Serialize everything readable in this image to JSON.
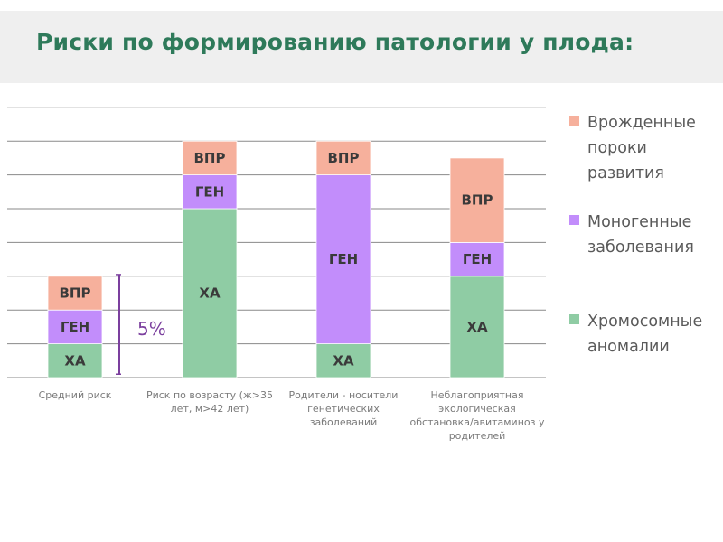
{
  "title": "Риски по формированию патологии у плода:",
  "annotation": "5%",
  "colors": {
    "vpr": "#f6b09c",
    "gen": "#c28dfb",
    "ha": "#8fcca4",
    "title": "#2e7a5a",
    "bracket": "#7b3f9e"
  },
  "chart_data": {
    "type": "bar",
    "stacked": true,
    "grid": true,
    "ylim": [
      0,
      8
    ],
    "categories": [
      "Средний риск",
      "Риск по возрасту (ж>35 лет, м>42 лет)",
      "Родители - носители генетических заболеваний",
      "Неблагоприятная экологическая обстановка/авитаминоз у родителей"
    ],
    "category_lines": [
      [
        "Средний риск"
      ],
      [
        "Риск по возрасту (ж>35",
        "лет, м>42 лет)"
      ],
      [
        "Родители - носители",
        "генетических",
        "заболеваний"
      ],
      [
        "Неблагоприятная",
        "экологическая",
        "обстановка/авитаминоз у",
        "родителей"
      ]
    ],
    "series": [
      {
        "key": "ha",
        "name": "Хромосомные аномалии",
        "label": "ХА",
        "values": [
          1,
          5,
          1,
          3
        ]
      },
      {
        "key": "gen",
        "name": "Моногенные заболевания",
        "label": "ГЕН",
        "values": [
          1,
          1,
          5,
          1
        ]
      },
      {
        "key": "vpr",
        "name": "Врожденные пороки развития",
        "label": "ВПР",
        "values": [
          1,
          1,
          1,
          2.5
        ]
      }
    ],
    "legend_position": "right",
    "legend": [
      {
        "key": "vpr",
        "lines": [
          "Врожденные",
          "пороки",
          "развития"
        ]
      },
      {
        "key": "gen",
        "lines": [
          "Моногенные",
          "заболевания"
        ]
      },
      {
        "key": "ha",
        "lines": [
          "Хромосомные",
          "аномалии"
        ]
      }
    ]
  }
}
